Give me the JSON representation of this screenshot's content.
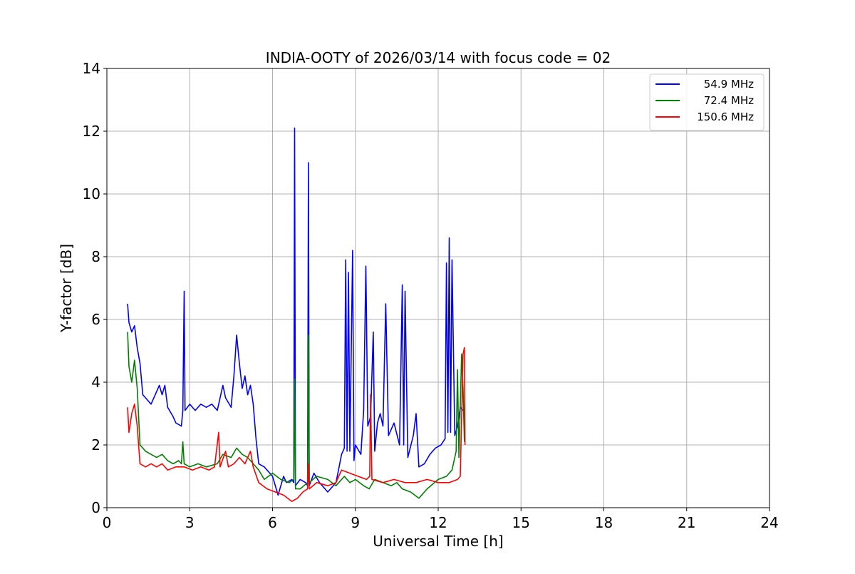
{
  "chart_data": {
    "type": "line",
    "title": "INDIA-OOTY of 2026/03/14 with focus code = 02",
    "xlabel": "Universal Time [h]",
    "ylabel": "Y-factor [dB]",
    "xlim": [
      0,
      24
    ],
    "ylim": [
      0,
      14
    ],
    "xticks": [
      0,
      3,
      6,
      9,
      12,
      15,
      18,
      21,
      24
    ],
    "yticks": [
      0,
      2,
      4,
      6,
      8,
      10,
      12,
      14
    ],
    "grid": true,
    "legend_position": "top-right",
    "series": [
      {
        "name": "54.9 MHz",
        "color": "#0000ff",
        "points": [
          [
            0.75,
            6.5
          ],
          [
            0.8,
            5.9
          ],
          [
            0.9,
            5.6
          ],
          [
            1.0,
            5.8
          ],
          [
            1.1,
            5.1
          ],
          [
            1.2,
            4.6
          ],
          [
            1.3,
            3.6
          ],
          [
            1.4,
            3.5
          ],
          [
            1.6,
            3.3
          ],
          [
            1.8,
            3.7
          ],
          [
            1.9,
            3.9
          ],
          [
            2.0,
            3.6
          ],
          [
            2.1,
            3.9
          ],
          [
            2.2,
            3.2
          ],
          [
            2.4,
            2.9
          ],
          [
            2.5,
            2.7
          ],
          [
            2.7,
            2.6
          ],
          [
            2.75,
            3.1
          ],
          [
            2.8,
            6.9
          ],
          [
            2.83,
            3.1
          ],
          [
            3.0,
            3.3
          ],
          [
            3.2,
            3.1
          ],
          [
            3.4,
            3.3
          ],
          [
            3.6,
            3.2
          ],
          [
            3.8,
            3.3
          ],
          [
            4.0,
            3.1
          ],
          [
            4.2,
            3.9
          ],
          [
            4.3,
            3.5
          ],
          [
            4.5,
            3.2
          ],
          [
            4.6,
            4.2
          ],
          [
            4.7,
            5.5
          ],
          [
            4.8,
            4.6
          ],
          [
            4.9,
            3.8
          ],
          [
            5.0,
            4.2
          ],
          [
            5.1,
            3.6
          ],
          [
            5.2,
            3.9
          ],
          [
            5.3,
            3.3
          ],
          [
            5.4,
            2.2
          ],
          [
            5.5,
            1.4
          ],
          [
            5.7,
            1.3
          ],
          [
            6.0,
            1.0
          ],
          [
            6.2,
            0.4
          ],
          [
            6.4,
            1.0
          ],
          [
            6.5,
            0.8
          ],
          [
            6.7,
            0.9
          ],
          [
            6.77,
            0.8
          ],
          [
            6.8,
            12.1
          ],
          [
            6.83,
            0.7
          ],
          [
            7.0,
            0.9
          ],
          [
            7.2,
            0.8
          ],
          [
            7.27,
            0.7
          ],
          [
            7.3,
            11.0
          ],
          [
            7.33,
            0.7
          ],
          [
            7.5,
            1.1
          ],
          [
            7.7,
            0.8
          ],
          [
            8.0,
            0.5
          ],
          [
            8.3,
            0.8
          ],
          [
            8.5,
            1.7
          ],
          [
            8.6,
            1.9
          ],
          [
            8.65,
            7.9
          ],
          [
            8.7,
            1.8
          ],
          [
            8.75,
            7.5
          ],
          [
            8.8,
            1.8
          ],
          [
            8.9,
            8.2
          ],
          [
            8.95,
            1.5
          ],
          [
            9.0,
            2.0
          ],
          [
            9.2,
            1.7
          ],
          [
            9.3,
            3.1
          ],
          [
            9.38,
            7.7
          ],
          [
            9.45,
            2.6
          ],
          [
            9.55,
            2.9
          ],
          [
            9.65,
            5.6
          ],
          [
            9.7,
            1.8
          ],
          [
            9.8,
            2.7
          ],
          [
            9.9,
            3.0
          ],
          [
            10.0,
            2.6
          ],
          [
            10.1,
            6.5
          ],
          [
            10.2,
            2.3
          ],
          [
            10.4,
            2.7
          ],
          [
            10.6,
            2.0
          ],
          [
            10.7,
            7.1
          ],
          [
            10.75,
            2.0
          ],
          [
            10.8,
            6.9
          ],
          [
            10.9,
            1.6
          ],
          [
            11.1,
            2.3
          ],
          [
            11.2,
            3.0
          ],
          [
            11.3,
            1.3
          ],
          [
            11.5,
            1.4
          ],
          [
            11.7,
            1.7
          ],
          [
            11.9,
            1.9
          ],
          [
            12.1,
            2.0
          ],
          [
            12.25,
            2.2
          ],
          [
            12.3,
            7.8
          ],
          [
            12.35,
            2.4
          ],
          [
            12.4,
            8.6
          ],
          [
            12.45,
            2.4
          ],
          [
            12.5,
            7.9
          ],
          [
            12.6,
            2.3
          ],
          [
            12.7,
            2.6
          ],
          [
            12.8,
            3.2
          ],
          [
            12.9,
            3.1
          ]
        ]
      },
      {
        "name": "72.4 MHz",
        "color": "#008000",
        "points": [
          [
            0.75,
            5.6
          ],
          [
            0.8,
            4.5
          ],
          [
            0.9,
            4.0
          ],
          [
            1.0,
            4.7
          ],
          [
            1.1,
            3.8
          ],
          [
            1.2,
            2.0
          ],
          [
            1.4,
            1.8
          ],
          [
            1.6,
            1.7
          ],
          [
            1.8,
            1.6
          ],
          [
            2.0,
            1.7
          ],
          [
            2.2,
            1.5
          ],
          [
            2.4,
            1.4
          ],
          [
            2.6,
            1.5
          ],
          [
            2.7,
            1.4
          ],
          [
            2.75,
            2.1
          ],
          [
            2.8,
            1.4
          ],
          [
            3.0,
            1.3
          ],
          [
            3.3,
            1.4
          ],
          [
            3.6,
            1.3
          ],
          [
            4.0,
            1.4
          ],
          [
            4.2,
            1.7
          ],
          [
            4.5,
            1.6
          ],
          [
            4.7,
            1.9
          ],
          [
            4.9,
            1.7
          ],
          [
            5.1,
            1.6
          ],
          [
            5.3,
            1.4
          ],
          [
            5.5,
            1.2
          ],
          [
            5.7,
            0.9
          ],
          [
            6.0,
            1.1
          ],
          [
            6.3,
            0.9
          ],
          [
            6.6,
            0.8
          ],
          [
            6.77,
            0.9
          ],
          [
            6.8,
            4.1
          ],
          [
            6.83,
            0.6
          ],
          [
            7.0,
            0.6
          ],
          [
            7.27,
            0.8
          ],
          [
            7.3,
            5.5
          ],
          [
            7.33,
            0.8
          ],
          [
            7.6,
            1.0
          ],
          [
            8.0,
            0.9
          ],
          [
            8.3,
            0.7
          ],
          [
            8.6,
            1.0
          ],
          [
            8.8,
            0.8
          ],
          [
            9.0,
            0.9
          ],
          [
            9.3,
            0.7
          ],
          [
            9.5,
            0.6
          ],
          [
            9.7,
            0.9
          ],
          [
            10.0,
            0.8
          ],
          [
            10.3,
            0.7
          ],
          [
            10.5,
            0.8
          ],
          [
            10.7,
            0.6
          ],
          [
            11.0,
            0.5
          ],
          [
            11.3,
            0.3
          ],
          [
            11.6,
            0.6
          ],
          [
            12.0,
            0.9
          ],
          [
            12.3,
            1.0
          ],
          [
            12.5,
            1.2
          ],
          [
            12.65,
            1.8
          ],
          [
            12.7,
            4.4
          ],
          [
            12.75,
            1.6
          ],
          [
            12.85,
            4.9
          ],
          [
            12.9,
            3.8
          ],
          [
            12.95,
            2.1
          ]
        ]
      },
      {
        "name": "150.6 MHz",
        "color": "#ff0000",
        "points": [
          [
            0.75,
            3.2
          ],
          [
            0.8,
            2.4
          ],
          [
            0.9,
            3.0
          ],
          [
            1.0,
            3.3
          ],
          [
            1.1,
            2.6
          ],
          [
            1.2,
            1.4
          ],
          [
            1.4,
            1.3
          ],
          [
            1.6,
            1.4
          ],
          [
            1.8,
            1.3
          ],
          [
            2.0,
            1.4
          ],
          [
            2.2,
            1.2
          ],
          [
            2.5,
            1.3
          ],
          [
            2.8,
            1.3
          ],
          [
            3.1,
            1.2
          ],
          [
            3.4,
            1.3
          ],
          [
            3.7,
            1.2
          ],
          [
            3.9,
            1.3
          ],
          [
            4.05,
            2.4
          ],
          [
            4.1,
            1.3
          ],
          [
            4.3,
            1.8
          ],
          [
            4.4,
            1.3
          ],
          [
            4.6,
            1.4
          ],
          [
            4.8,
            1.6
          ],
          [
            5.0,
            1.4
          ],
          [
            5.2,
            1.8
          ],
          [
            5.3,
            1.3
          ],
          [
            5.5,
            0.8
          ],
          [
            5.8,
            0.6
          ],
          [
            6.1,
            0.5
          ],
          [
            6.4,
            0.4
          ],
          [
            6.7,
            0.2
          ],
          [
            6.9,
            0.3
          ],
          [
            7.1,
            0.5
          ],
          [
            7.27,
            0.6
          ],
          [
            7.3,
            1.4
          ],
          [
            7.33,
            0.6
          ],
          [
            7.6,
            0.8
          ],
          [
            8.0,
            0.7
          ],
          [
            8.3,
            0.8
          ],
          [
            8.5,
            1.2
          ],
          [
            8.8,
            1.1
          ],
          [
            9.1,
            1.0
          ],
          [
            9.4,
            0.9
          ],
          [
            9.52,
            1.0
          ],
          [
            9.55,
            3.6
          ],
          [
            9.6,
            0.9
          ],
          [
            10.0,
            0.8
          ],
          [
            10.4,
            0.9
          ],
          [
            10.8,
            0.8
          ],
          [
            11.2,
            0.8
          ],
          [
            11.6,
            0.9
          ],
          [
            12.0,
            0.8
          ],
          [
            12.4,
            0.8
          ],
          [
            12.7,
            0.9
          ],
          [
            12.8,
            1.0
          ],
          [
            12.9,
            4.9
          ],
          [
            12.95,
            5.1
          ],
          [
            12.97,
            2.0
          ]
        ]
      }
    ]
  }
}
